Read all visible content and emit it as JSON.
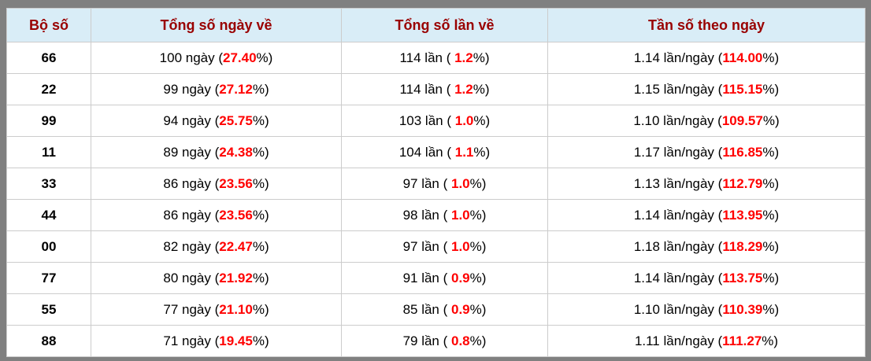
{
  "colors": {
    "frame_border": "#808080",
    "header_bg": "#d9edf7",
    "header_text": "#990000",
    "highlight_red": "#ff0000",
    "grid_line": "#cccccc",
    "body_text": "#000000"
  },
  "table": {
    "headers": [
      "Bộ số",
      "Tổng số ngày về",
      "Tổng số lần về",
      "Tần số theo ngày"
    ],
    "rows": [
      {
        "pair": "66",
        "days": [
          "100 ngày (",
          "27.40",
          "%)"
        ],
        "times": [
          "114 lần ( ",
          "1.2",
          "%)"
        ],
        "freq": [
          "1.14 lần/ngày (",
          "114.00",
          "%)"
        ]
      },
      {
        "pair": "22",
        "days": [
          "99 ngày (",
          "27.12",
          "%)"
        ],
        "times": [
          "114 lần ( ",
          "1.2",
          "%)"
        ],
        "freq": [
          "1.15 lần/ngày (",
          "115.15",
          "%)"
        ]
      },
      {
        "pair": "99",
        "days": [
          "94 ngày (",
          "25.75",
          "%)"
        ],
        "times": [
          "103 lần ( ",
          "1.0",
          "%)"
        ],
        "freq": [
          "1.10 lần/ngày (",
          "109.57",
          "%)"
        ]
      },
      {
        "pair": "11",
        "days": [
          "89 ngày (",
          "24.38",
          "%)"
        ],
        "times": [
          "104 lần ( ",
          "1.1",
          "%)"
        ],
        "freq": [
          "1.17 lần/ngày (",
          "116.85",
          "%)"
        ]
      },
      {
        "pair": "33",
        "days": [
          "86 ngày (",
          "23.56",
          "%)"
        ],
        "times": [
          "97 lần ( ",
          "1.0",
          "%)"
        ],
        "freq": [
          "1.13 lần/ngày (",
          "112.79",
          "%)"
        ]
      },
      {
        "pair": "44",
        "days": [
          "86 ngày (",
          "23.56",
          "%)"
        ],
        "times": [
          "98 lần ( ",
          "1.0",
          "%)"
        ],
        "freq": [
          "1.14 lần/ngày (",
          "113.95",
          "%)"
        ]
      },
      {
        "pair": "00",
        "days": [
          "82 ngày (",
          "22.47",
          "%)"
        ],
        "times": [
          "97 lần ( ",
          "1.0",
          "%)"
        ],
        "freq": [
          "1.18 lần/ngày (",
          "118.29",
          "%)"
        ]
      },
      {
        "pair": "77",
        "days": [
          "80 ngày (",
          "21.92",
          "%)"
        ],
        "times": [
          "91 lần ( ",
          "0.9",
          "%)"
        ],
        "freq": [
          "1.14 lần/ngày (",
          "113.75",
          "%)"
        ]
      },
      {
        "pair": "55",
        "days": [
          "77 ngày (",
          "21.10",
          "%)"
        ],
        "times": [
          "85 lần ( ",
          "0.9",
          "%)"
        ],
        "freq": [
          "1.10 lần/ngày (",
          "110.39",
          "%)"
        ]
      },
      {
        "pair": "88",
        "days": [
          "71 ngày (",
          "19.45",
          "%)"
        ],
        "times": [
          "79 lần ( ",
          "0.8",
          "%)"
        ],
        "freq": [
          "1.11 lần/ngày (",
          "111.27",
          "%)"
        ]
      }
    ]
  },
  "chart_data": {
    "type": "table",
    "title": "",
    "columns": [
      "Bộ số",
      "Tổng số ngày về",
      "Tổng số ngày về %",
      "Tổng số lần về",
      "Tổng số lần về %",
      "Tần số theo ngày (lần/ngày)",
      "Tần số theo ngày %"
    ],
    "rows": [
      [
        "66",
        100,
        27.4,
        114,
        1.2,
        1.14,
        114.0
      ],
      [
        "22",
        99,
        27.12,
        114,
        1.2,
        1.15,
        115.15
      ],
      [
        "99",
        94,
        25.75,
        103,
        1.0,
        1.1,
        109.57
      ],
      [
        "11",
        89,
        24.38,
        104,
        1.1,
        1.17,
        116.85
      ],
      [
        "33",
        86,
        23.56,
        97,
        1.0,
        1.13,
        112.79
      ],
      [
        "44",
        86,
        23.56,
        98,
        1.0,
        1.14,
        113.95
      ],
      [
        "00",
        82,
        22.47,
        97,
        1.0,
        1.18,
        118.29
      ],
      [
        "77",
        80,
        21.92,
        91,
        0.9,
        1.14,
        113.75
      ],
      [
        "55",
        77,
        21.1,
        85,
        0.9,
        1.1,
        110.39
      ],
      [
        "88",
        71,
        19.45,
        79,
        0.8,
        1.11,
        111.27
      ]
    ]
  }
}
